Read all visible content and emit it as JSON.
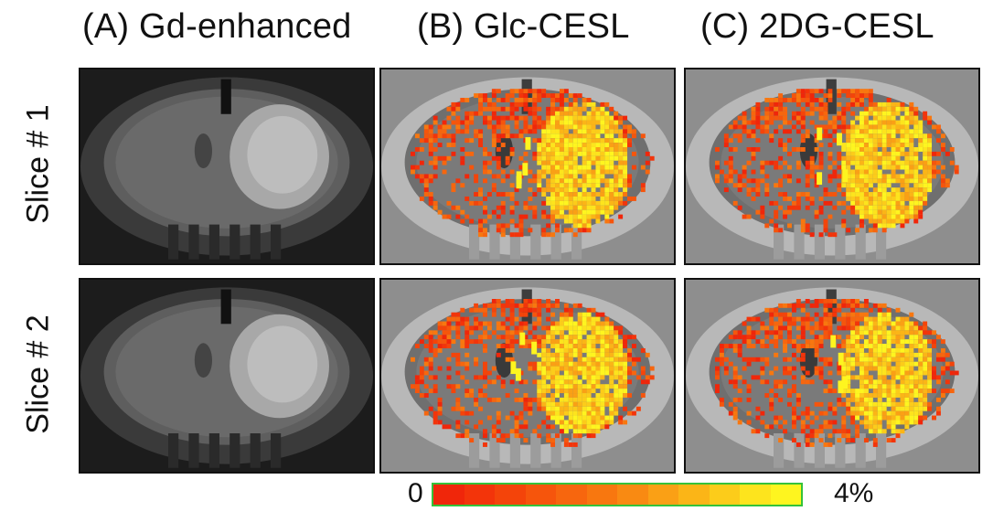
{
  "columns": [
    {
      "label": "(A) Gd-enhanced"
    },
    {
      "label": "(B)  Glc-CESL"
    },
    {
      "label": "(C)  2DG-CESL"
    }
  ],
  "rows": [
    {
      "label": "Slice # 1"
    },
    {
      "label": "Slice # 2"
    }
  ],
  "colorbar": {
    "min_label": "0",
    "max_label": "4%",
    "colors": [
      "#f0260a",
      "#f3340a",
      "#f4440a",
      "#f6550c",
      "#f7660e",
      "#f8770f",
      "#f98a12",
      "#faa015",
      "#fbb517",
      "#fccc1a",
      "#fde41d",
      "#fef51f"
    ]
  },
  "palette": {
    "background": "#ffffff",
    "overlay_low": "#f0260a",
    "overlay_high": "#fef51f"
  }
}
